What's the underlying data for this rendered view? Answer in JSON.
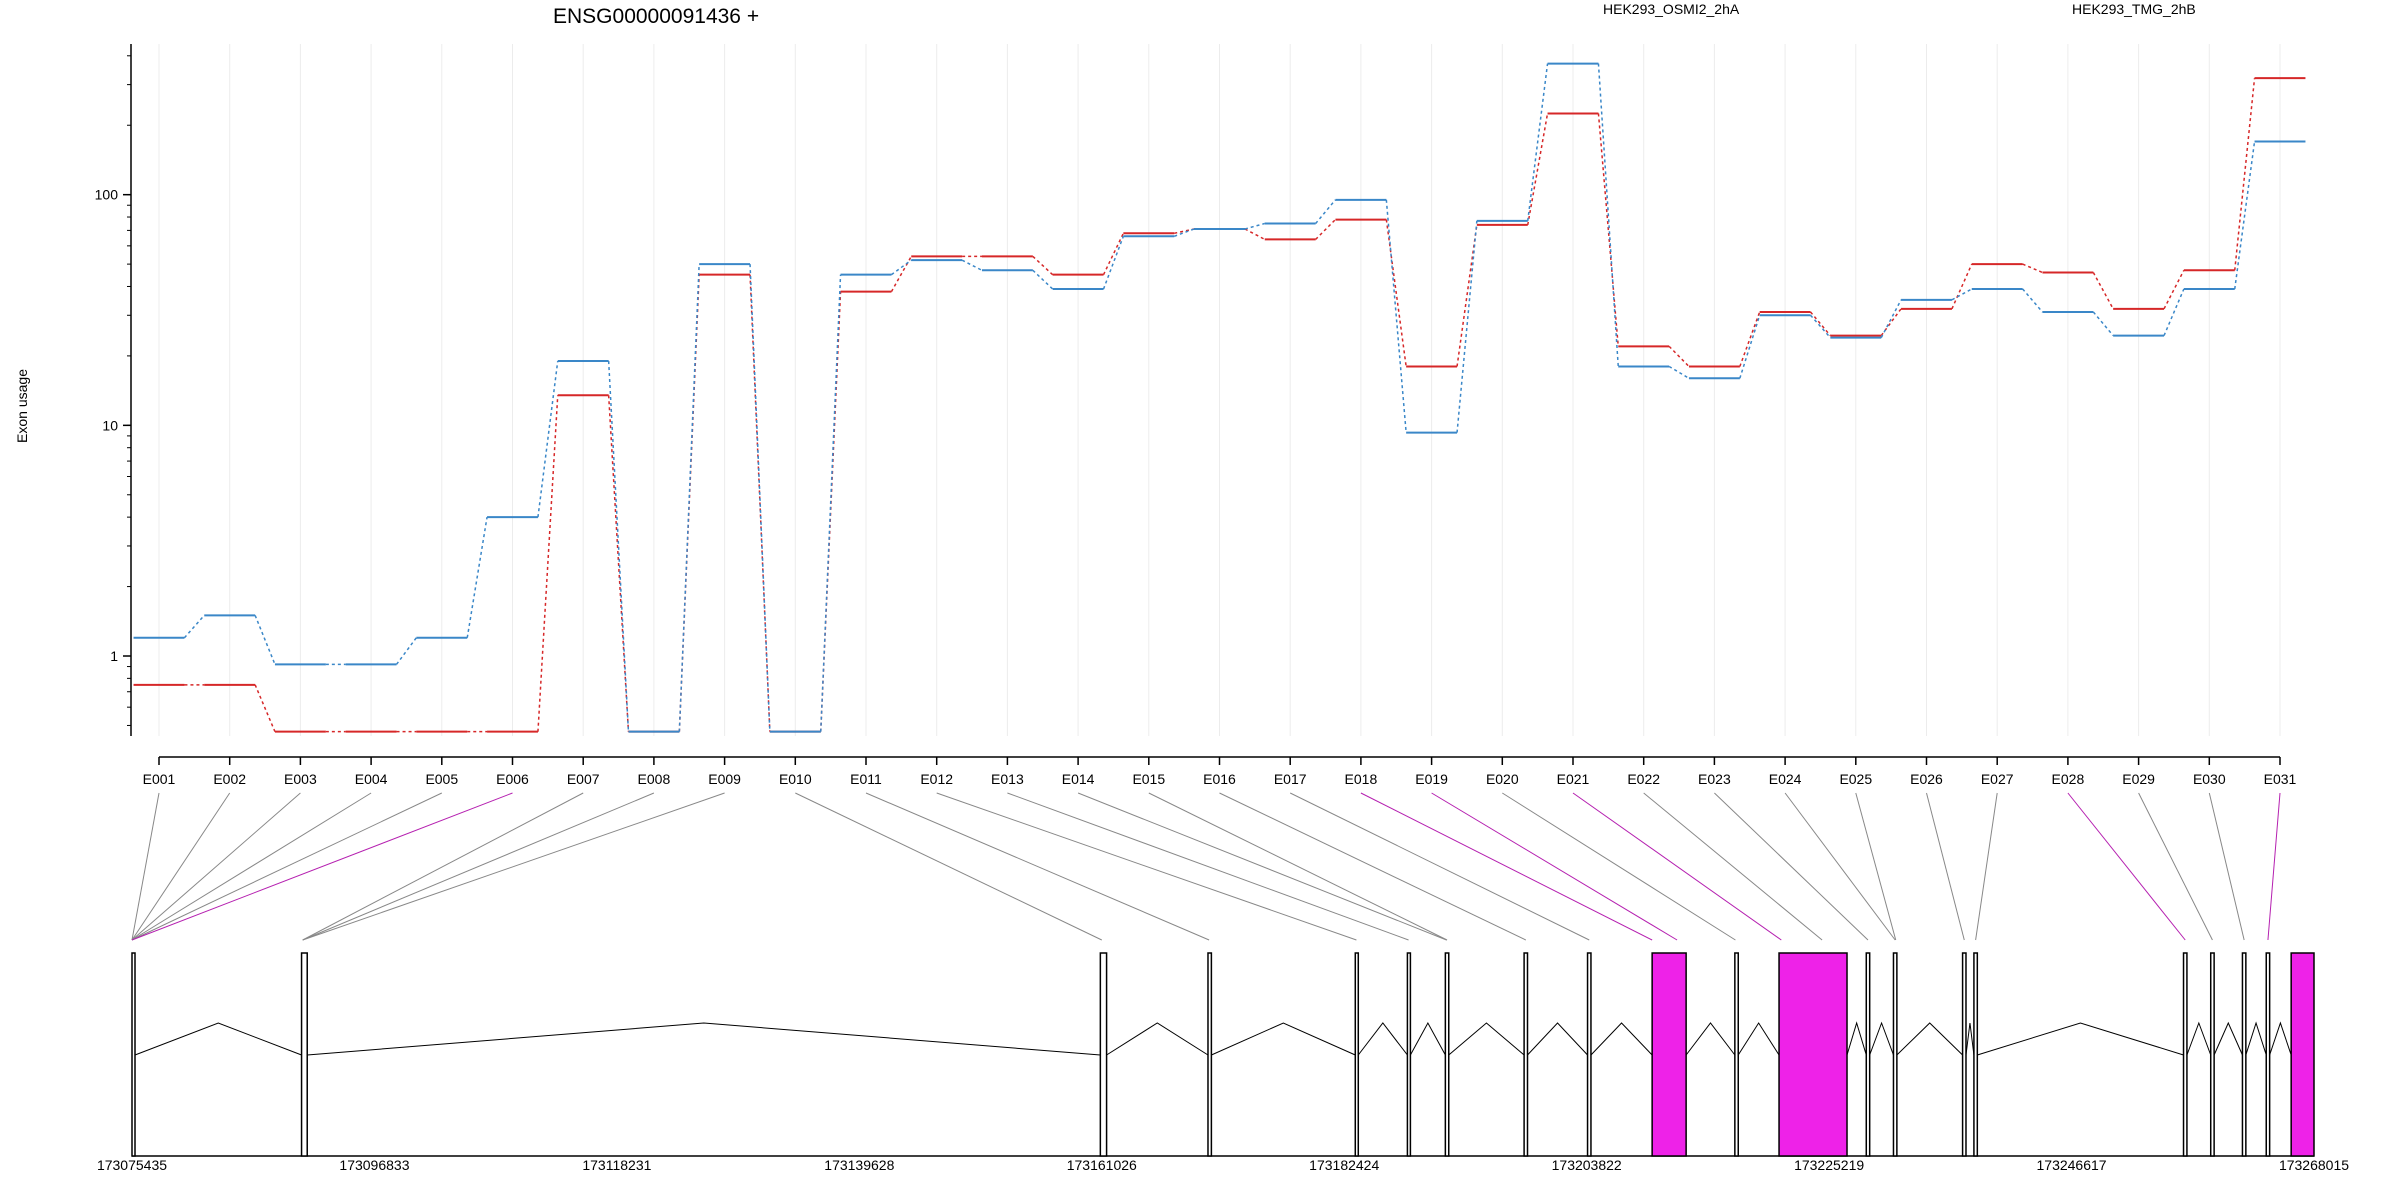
{
  "chart_data": {
    "type": "line",
    "title": "ENSG00000091436 +",
    "ylabel": "Exon usage",
    "yscale": "log",
    "ylim": [
      0.45,
      450
    ],
    "yticks": [
      1,
      10,
      100
    ],
    "ytick_labels": [
      "1",
      "10",
      "100"
    ],
    "categories": [
      "E001",
      "E002",
      "E003",
      "E004",
      "E005",
      "E006",
      "E007",
      "E008",
      "E009",
      "E010",
      "E011",
      "E012",
      "E013",
      "E014",
      "E015",
      "E016",
      "E017",
      "E018",
      "E019",
      "E020",
      "E021",
      "E022",
      "E023",
      "E024",
      "E025",
      "E026",
      "E027",
      "E028",
      "E029",
      "E030",
      "E031"
    ],
    "series": [
      {
        "name": "HEK293_OSMI2_2hA",
        "color": "#d62728",
        "values": [
          0.75,
          0.75,
          0.47,
          0.47,
          0.47,
          0.47,
          13.5,
          0.47,
          45,
          0.47,
          38,
          54,
          54,
          45,
          68,
          71,
          64,
          78,
          18,
          74,
          225,
          22,
          18,
          31,
          24.5,
          32,
          50,
          46,
          32,
          47,
          320
        ]
      },
      {
        "name": "HEK293_TMG_2hB",
        "color": "#3a87c8",
        "values": [
          1.2,
          1.5,
          0.92,
          0.92,
          1.2,
          4,
          19,
          0.47,
          50,
          0.47,
          45,
          52,
          47,
          39,
          66,
          71,
          75,
          95,
          9.3,
          77,
          370,
          18,
          16,
          30,
          24,
          35,
          39,
          31,
          24.5,
          39,
          170
        ]
      }
    ],
    "gene_model": {
      "coord_ticks": [
        "173075435",
        "173096833",
        "173118231",
        "173139628",
        "173161026",
        "173182424",
        "173203822",
        "173225219",
        "173246617",
        "173268015"
      ],
      "coord_range": [
        173075435,
        173268015
      ],
      "exons": [
        {
          "start": 173075435,
          "end": 173075650
        },
        {
          "start": 173090400,
          "end": 173090900
        },
        {
          "start": 173160900,
          "end": 173161450
        },
        {
          "start": 173170400,
          "end": 173170700
        },
        {
          "start": 173183400,
          "end": 173183650
        },
        {
          "start": 173188000,
          "end": 173188250
        },
        {
          "start": 173191350,
          "end": 173191650
        },
        {
          "start": 173198300,
          "end": 173198600
        },
        {
          "start": 173203900,
          "end": 173204200
        },
        {
          "start": 173209600,
          "end": 173212600,
          "highlight": true
        },
        {
          "start": 173216900,
          "end": 173217200
        },
        {
          "start": 173220800,
          "end": 173226800,
          "highlight": true
        },
        {
          "start": 173228500,
          "end": 173228800
        },
        {
          "start": 173230900,
          "end": 173231200
        },
        {
          "start": 173237000,
          "end": 173237300
        },
        {
          "start": 173238000,
          "end": 173238300
        },
        {
          "start": 173256500,
          "end": 173256800
        },
        {
          "start": 173258900,
          "end": 173259200
        },
        {
          "start": 173261700,
          "end": 173262000
        },
        {
          "start": 173263800,
          "end": 173264100
        },
        {
          "start": 173266000,
          "end": 173268015,
          "highlight": true
        }
      ],
      "exon_positions": [
        173075435,
        173075435,
        173075435,
        173075435,
        173075435,
        173075435,
        173090500,
        173090500,
        173090500,
        173161026,
        173170500,
        173183500,
        173188100,
        173191450,
        173191500,
        173198450,
        173204050,
        173209600,
        173211800,
        173216950,
        173221000,
        173224600,
        173228650,
        173231050,
        173231100,
        173237150,
        173238150,
        173256650,
        173259050,
        173261850,
        173263950
      ],
      "highlighted_exons": [
        "E006",
        "E018",
        "E019",
        "E021",
        "E028",
        "E031"
      ],
      "highlight_color": "#ee22e8"
    }
  }
}
